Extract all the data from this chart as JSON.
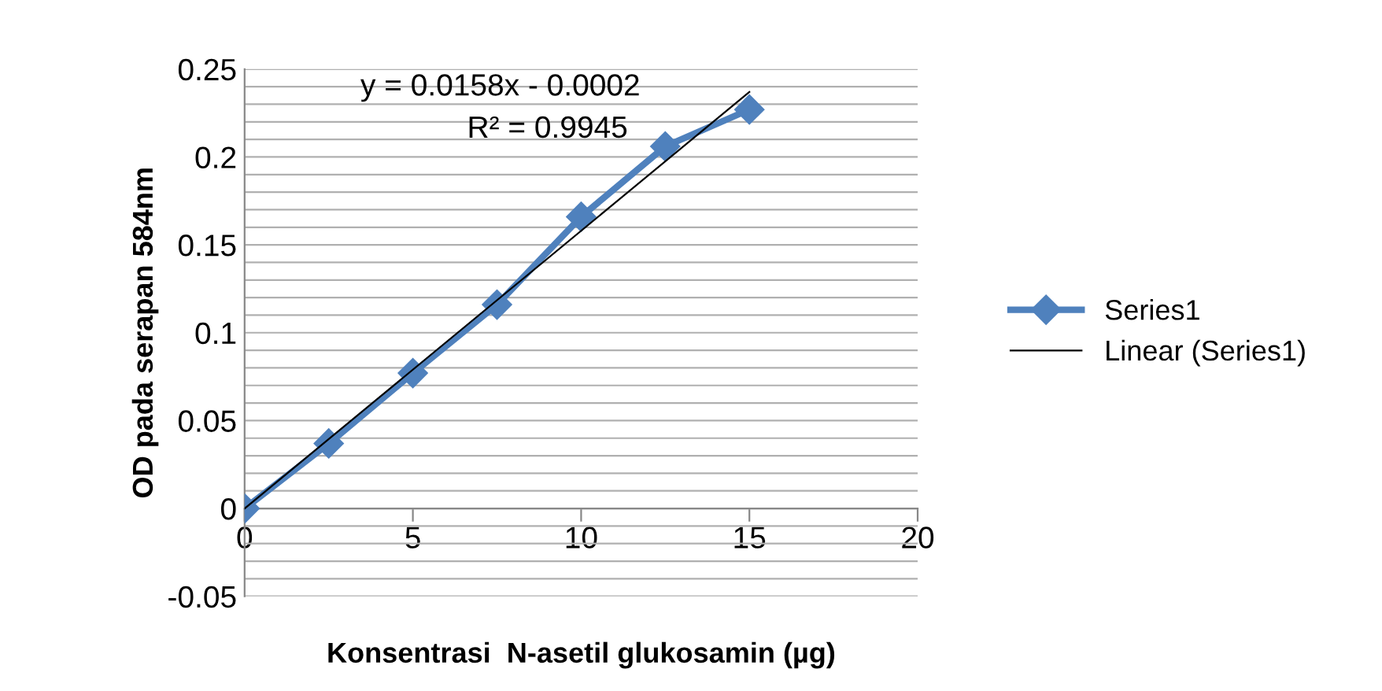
{
  "chart_data": {
    "type": "line",
    "xlabel": "Konsentrasi  N-asetil glukosamin (µg)",
    "ylabel": "OD pada serapan 584nm",
    "xlim": [
      0,
      20
    ],
    "xticks": [
      0,
      5,
      10,
      15,
      20
    ],
    "ylim": [
      -0.05,
      0.25
    ],
    "yticks": [
      -0.05,
      {
        "value": -0.04,
        "label": null
      },
      {
        "value": -0.03,
        "label": null
      },
      {
        "value": -0.02,
        "label": null
      },
      {
        "value": -0.01,
        "label": null
      },
      0,
      {
        "value": 0.01,
        "label": null
      },
      {
        "value": 0.02,
        "label": null
      },
      {
        "value": 0.03,
        "label": null
      },
      {
        "value": 0.04,
        "label": null
      },
      0.05,
      {
        "value": 0.06,
        "label": null
      },
      {
        "value": 0.07,
        "label": null
      },
      {
        "value": 0.08,
        "label": null
      },
      {
        "value": 0.09,
        "label": null
      },
      0.1,
      {
        "value": 0.11,
        "label": null
      },
      {
        "value": 0.12,
        "label": null
      },
      {
        "value": 0.13,
        "label": null
      },
      {
        "value": 0.14,
        "label": null
      },
      0.15,
      {
        "value": 0.16,
        "label": null
      },
      {
        "value": 0.17,
        "label": null
      },
      {
        "value": 0.18,
        "label": null
      },
      {
        "value": 0.19,
        "label": null
      },
      0.2,
      {
        "value": 0.21,
        "label": null
      },
      {
        "value": 0.22,
        "label": null
      },
      {
        "value": 0.23,
        "label": null
      },
      {
        "value": 0.24,
        "label": null
      },
      0.25
    ],
    "grid": "y",
    "legend": "right",
    "series": [
      {
        "name": "Series1",
        "color": "#4f81bd",
        "marker": "diamond",
        "x": [
          0,
          2.5,
          5,
          7.5,
          10,
          12.5,
          15
        ],
        "values": [
          0,
          0.037,
          0.077,
          0.116,
          0.166,
          0.206,
          0.227
        ]
      },
      {
        "name": "Linear (Series1)",
        "color": "#000000",
        "marker": "none",
        "x": [
          0,
          15
        ],
        "values": [
          0,
          0.237
        ]
      }
    ],
    "annotations": [
      "y = 0.0158x - 0.0002",
      "R² = 0.9945"
    ]
  }
}
